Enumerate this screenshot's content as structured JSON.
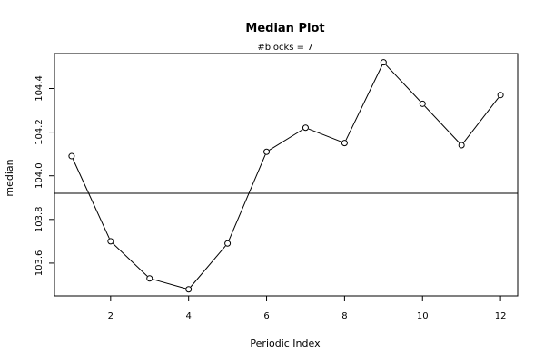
{
  "chart_data": {
    "type": "line",
    "title": "Median Plot",
    "subtitle": "#blocks =  7",
    "xlabel": "Periodic Index",
    "ylabel": "median",
    "x": [
      1,
      2,
      3,
      4,
      5,
      6,
      7,
      8,
      9,
      10,
      11,
      12
    ],
    "series": [
      {
        "values": [
          104.09,
          103.7,
          103.53,
          103.48,
          103.69,
          104.11,
          104.22,
          104.15,
          104.52,
          104.33,
          104.14,
          104.37
        ]
      }
    ],
    "reference_line": 103.92,
    "xticks": [
      2,
      4,
      6,
      8,
      10,
      12
    ],
    "yticks": [
      103.6,
      103.8,
      104.0,
      104.2,
      104.4
    ],
    "xtick_labels": [
      "2",
      "4",
      "6",
      "8",
      "10",
      "12"
    ],
    "ytick_labels": [
      "103.6",
      "103.8",
      "104.0",
      "104.2",
      "104.4"
    ],
    "xlim": [
      0.56,
      12.44
    ],
    "ylim": [
      103.45,
      104.56
    ],
    "grid": false,
    "marker": "open-circle",
    "line_color": "#000000"
  }
}
